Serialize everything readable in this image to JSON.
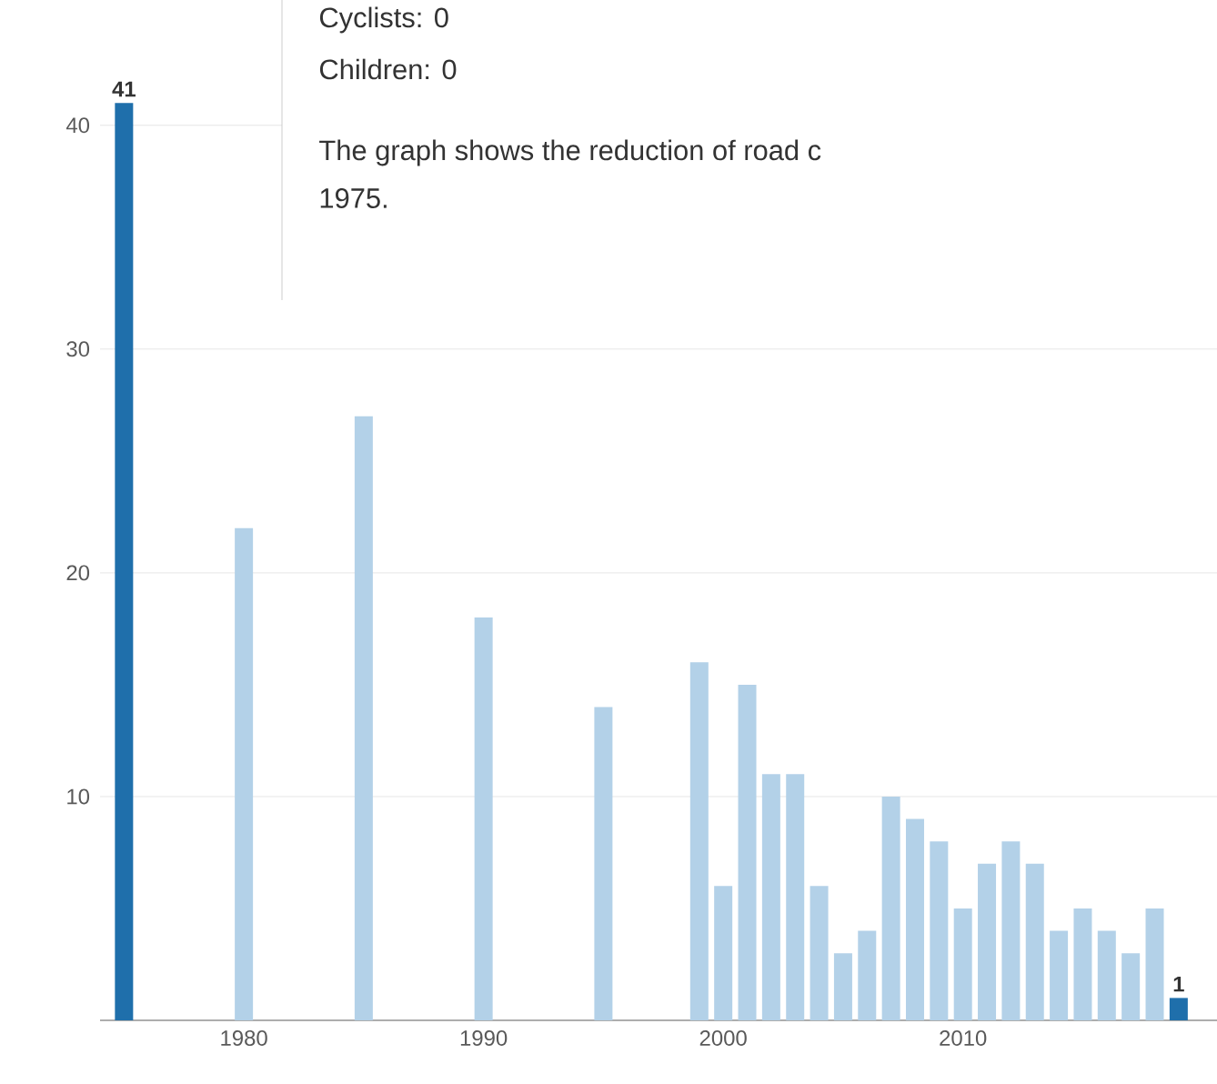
{
  "chart_data": {
    "type": "bar",
    "x": [
      1975,
      1980,
      1985,
      1990,
      1995,
      1999,
      2000,
      2001,
      2002,
      2003,
      2004,
      2005,
      2006,
      2007,
      2008,
      2009,
      2010,
      2011,
      2012,
      2013,
      2014,
      2015,
      2016,
      2017,
      2018,
      2019
    ],
    "values": [
      41,
      22,
      27,
      18,
      14,
      16,
      6,
      15,
      11,
      11,
      6,
      3,
      4,
      10,
      9,
      8,
      5,
      7,
      8,
      7,
      4,
      5,
      4,
      3,
      5,
      1
    ],
    "colors": [
      "#1f6fab",
      "#b3d1e8",
      "#b3d1e8",
      "#b3d1e8",
      "#b3d1e8",
      "#b3d1e8",
      "#b3d1e8",
      "#b3d1e8",
      "#b3d1e8",
      "#b3d1e8",
      "#b3d1e8",
      "#b3d1e8",
      "#b3d1e8",
      "#b3d1e8",
      "#b3d1e8",
      "#b3d1e8",
      "#b3d1e8",
      "#b3d1e8",
      "#b3d1e8",
      "#b3d1e8",
      "#b3d1e8",
      "#b3d1e8",
      "#b3d1e8",
      "#b3d1e8",
      "#b3d1e8",
      "#1f6fab"
    ],
    "value_labels": [
      "41",
      null,
      null,
      null,
      null,
      null,
      null,
      null,
      null,
      null,
      null,
      null,
      null,
      null,
      null,
      null,
      null,
      null,
      null,
      null,
      null,
      null,
      null,
      null,
      null,
      "1"
    ],
    "xlim": [
      1974,
      2020.6
    ],
    "xticks": [
      1980,
      1990,
      2000,
      2010
    ],
    "ylim": [
      0,
      45.6
    ],
    "yticks": [
      10,
      20,
      30,
      40
    ],
    "grid": "y",
    "annotations": [
      "Cyclists: 0",
      "Children: 0",
      "The graph shows the reduction of road c",
      "1975."
    ]
  }
}
